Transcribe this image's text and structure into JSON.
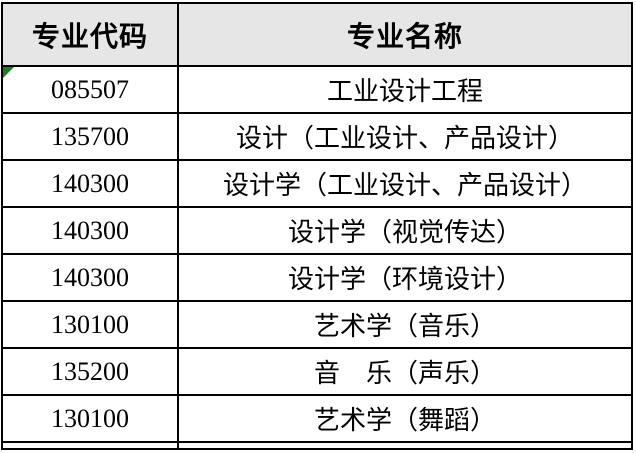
{
  "table": {
    "headers": {
      "code": "专业代码",
      "name": "专业名称"
    },
    "rows": [
      {
        "code": "085507",
        "name": "工业设计工程"
      },
      {
        "code": "135700",
        "name": "设计（工业设计、产品设计）"
      },
      {
        "code": "140300",
        "name": "设计学（工业设计、产品设计）"
      },
      {
        "code": "140300",
        "name": "设计学（视觉传达）"
      },
      {
        "code": "140300",
        "name": "设计学（环境设计）"
      },
      {
        "code": "130100",
        "name": "艺术学（音乐）"
      },
      {
        "code": "135200",
        "name": "音　乐（声乐）"
      },
      {
        "code": "130100",
        "name": "艺术学（舞蹈）"
      }
    ],
    "colors": {
      "header_background": "#e7e6e6",
      "border": "#000000",
      "corner_marker_green": "#1e7d1e",
      "text": "#000000"
    }
  }
}
